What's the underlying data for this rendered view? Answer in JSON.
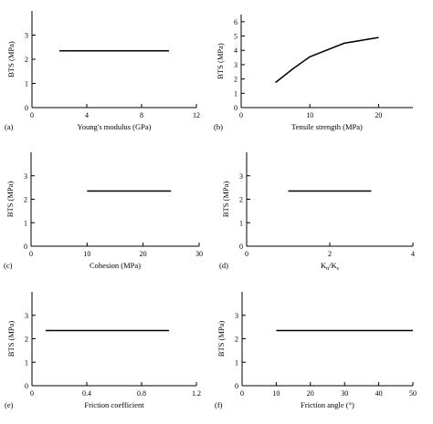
{
  "chart_data": [
    {
      "type": "line",
      "panel": "(a)",
      "xlabel": "Young's modulus (GPa)",
      "ylabel": "BTS (MPa)",
      "xlim": [
        0,
        12
      ],
      "ylim": [
        0,
        4
      ],
      "xticks": [
        0,
        4,
        8,
        12
      ],
      "yticks": [
        0,
        1,
        2,
        3
      ],
      "grid": false,
      "series": [
        {
          "x": [
            2,
            10
          ],
          "y": [
            2.35,
            2.35
          ]
        }
      ]
    },
    {
      "type": "line",
      "panel": "(b)",
      "xlabel": "Tensile strength (MPa)",
      "ylabel": "BTS (MPa)",
      "xlim": [
        0,
        25
      ],
      "ylim": [
        0,
        6.5
      ],
      "xticks": [
        0,
        10,
        20
      ],
      "yticks": [
        0,
        1,
        2,
        3,
        4,
        5,
        6
      ],
      "grid": false,
      "series": [
        {
          "x": [
            5,
            7.5,
            10,
            15,
            20
          ],
          "y": [
            1.75,
            2.7,
            3.55,
            4.5,
            4.9
          ]
        }
      ]
    },
    {
      "type": "line",
      "panel": "(c)",
      "xlabel": "Cohesion (MPa)",
      "ylabel": "BTS (MPa)",
      "xlim": [
        0,
        30
      ],
      "ylim": [
        0,
        4
      ],
      "xticks": [
        0,
        10,
        20,
        30
      ],
      "yticks": [
        0,
        1,
        2,
        3
      ],
      "grid": false,
      "series": [
        {
          "x": [
            10,
            25
          ],
          "y": [
            2.35,
            2.35
          ]
        }
      ]
    },
    {
      "type": "line",
      "panel": "(d)",
      "xlabel": "Kn/Ks",
      "ylabel": "BTS (MPa)",
      "xlim": [
        0,
        4
      ],
      "ylim": [
        0,
        4
      ],
      "xticks": [
        0,
        2,
        4
      ],
      "yticks": [
        0,
        1,
        2,
        3
      ],
      "grid": false,
      "series": [
        {
          "x": [
            1,
            3
          ],
          "y": [
            2.35,
            2.35
          ]
        }
      ]
    },
    {
      "type": "line",
      "panel": "(e)",
      "xlabel": "Friction coefficient",
      "ylabel": "BTS (MPa)",
      "xlim": [
        0,
        1.2
      ],
      "ylim": [
        0,
        4
      ],
      "xticks": [
        0,
        0.4,
        0.8,
        1.2
      ],
      "yticks": [
        0,
        1,
        2,
        3
      ],
      "grid": false,
      "series": [
        {
          "x": [
            0.1,
            1.0
          ],
          "y": [
            2.35,
            2.35
          ]
        }
      ]
    },
    {
      "type": "line",
      "panel": "(f)",
      "xlabel": "Friction angle (°)",
      "ylabel": "BTS (MPa)",
      "xlim": [
        0,
        50
      ],
      "ylim": [
        0,
        4
      ],
      "xticks": [
        0,
        10,
        20,
        30,
        40,
        50
      ],
      "yticks": [
        0,
        1,
        2,
        3
      ],
      "grid": false,
      "series": [
        {
          "x": [
            10,
            50
          ],
          "y": [
            2.35,
            2.35
          ]
        }
      ]
    }
  ]
}
